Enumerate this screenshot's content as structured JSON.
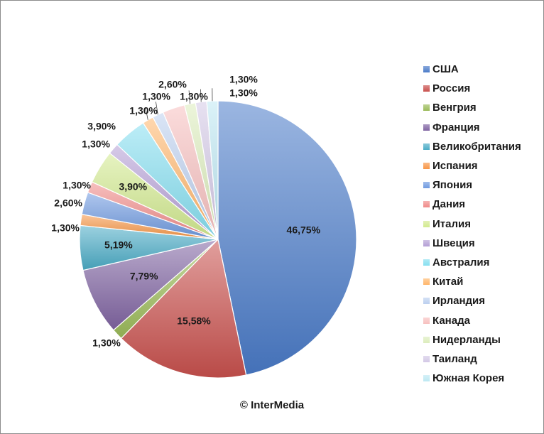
{
  "chart_data": {
    "type": "pie",
    "title": "",
    "legend_position": "right",
    "categories": [
      "США",
      "Россия",
      "Венгрия",
      "Франция",
      "Великобритания",
      "Испания",
      "Япония",
      "Дания",
      "Италия",
      "Швеция",
      "Австралия",
      "Китай",
      "Ирландия",
      "Канада",
      "Нидерланды",
      "Таиланд",
      "Южная Корея"
    ],
    "values": [
      46.75,
      15.58,
      1.3,
      7.79,
      5.19,
      1.3,
      2.6,
      1.3,
      3.9,
      1.3,
      3.9,
      1.3,
      1.3,
      2.6,
      1.3,
      1.3,
      1.3
    ],
    "labels": [
      "46,75%",
      "15,58%",
      "1,30%",
      "7,79%",
      "5,19%",
      "1,30%",
      "2,60%",
      "1,30%",
      "3,90%",
      "1,30%",
      "3,90%",
      "1,30%",
      "1,30%",
      "2,60%",
      "1,30%",
      "1,30%",
      "1,30%"
    ],
    "colors": [
      "#4a7bc8",
      "#c9504d",
      "#9bbb59",
      "#8064a2",
      "#4bacc6",
      "#f79646",
      "#6f9ae0",
      "#f08a88",
      "#d2ea8e",
      "#b49fd6",
      "#86dff0",
      "#ffb66b",
      "#bcd0ef",
      "#f7c0bf",
      "#dcedbc",
      "#d3c8e6",
      "#bde8f2"
    ]
  },
  "footer": {
    "copyright": "© InterMedia"
  }
}
